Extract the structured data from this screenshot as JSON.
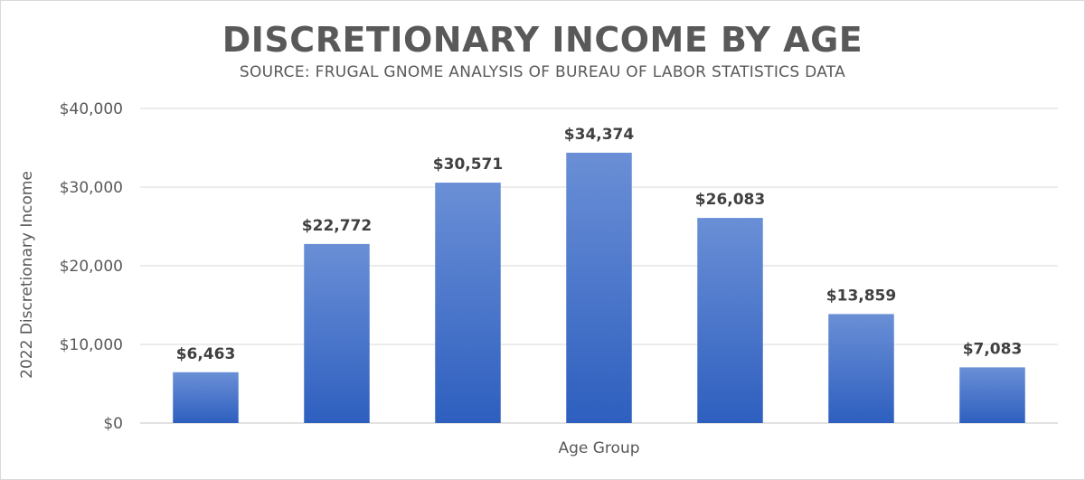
{
  "chart_data": {
    "type": "bar",
    "title": "DISCRETIONARY INCOME BY AGE",
    "subtitle": "SOURCE: FRUGAL GNOME ANALYSIS OF BUREAU OF LABOR STATISTICS DATA",
    "xlabel": "Age Group",
    "ylabel": "2022 Discretionary Income",
    "categories": [
      "",
      "",
      "",
      "",
      "",
      "",
      ""
    ],
    "values": [
      6463,
      22772,
      30571,
      34374,
      26083,
      13859,
      7083
    ],
    "data_labels": [
      "$6,463",
      "$22,772",
      "$30,571",
      "$34,374",
      "$26,083",
      "$13,859",
      "$7,083"
    ],
    "ylim": [
      0,
      40000
    ],
    "yticks": [
      0,
      10000,
      20000,
      30000,
      40000
    ],
    "ytick_labels": [
      "$0",
      "$10,000",
      "$20,000",
      "$30,000",
      "$40,000"
    ],
    "grid": true,
    "legend": "none",
    "colors": {
      "bar_top": "#6a8fd6",
      "bar_bottom": "#2e5fbf",
      "grid": "#d9d9d9",
      "text": "#595959"
    }
  }
}
